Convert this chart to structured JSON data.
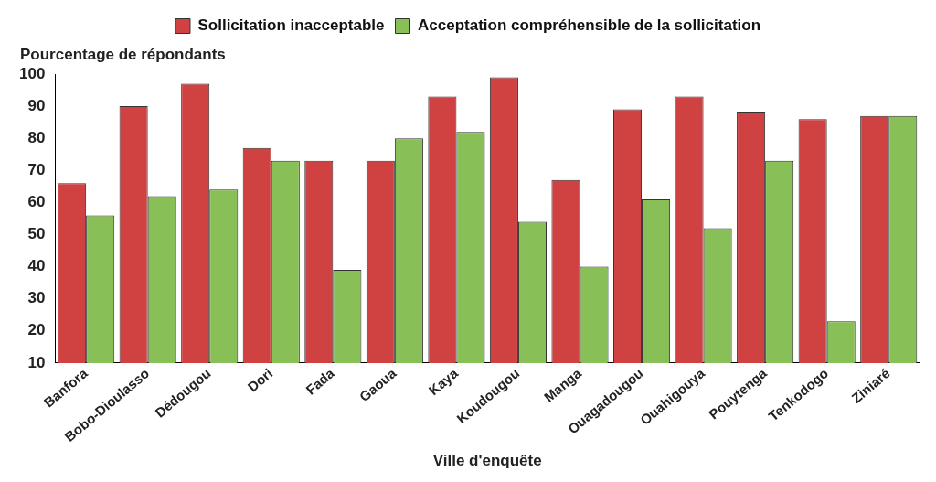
{
  "chart_data": {
    "type": "bar",
    "ylabel": "Pourcentage de répondants",
    "xlabel": "Ville d'enquête",
    "categories": [
      "Banfora",
      "Bobo-Dioulasso",
      "Dédougou",
      "Dori",
      "Fada",
      "Gaoua",
      "Kaya",
      "Koudougou",
      "Manga",
      "Ouagadougou",
      "Ouahigouya",
      "Pouytenga",
      "Tenkodogo",
      "Ziniaré"
    ],
    "series": [
      {
        "name": "Sollicitation inacceptable",
        "color": "#d04242",
        "values": [
          66,
          90,
          97,
          77,
          73,
          73,
          93,
          99,
          67,
          89,
          93,
          88,
          86,
          87
        ]
      },
      {
        "name": "Acceptation compréhensible de la sollicitation",
        "color": "#88bf56",
        "values": [
          56,
          62,
          64,
          73,
          39,
          80,
          82,
          54,
          40,
          61,
          52,
          73,
          23,
          87
        ]
      }
    ],
    "ylim": [
      10,
      100
    ],
    "yticks": [
      10,
      20,
      30,
      40,
      50,
      60,
      70,
      80,
      90,
      100
    ],
    "grid": false,
    "legend": "top"
  }
}
